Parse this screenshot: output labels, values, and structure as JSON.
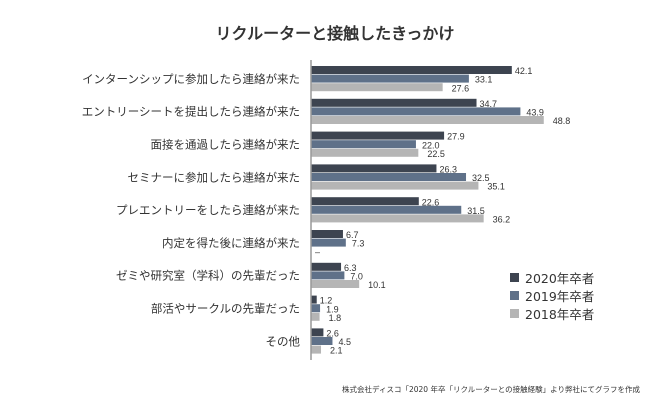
{
  "chart_data": {
    "type": "bar",
    "orientation": "horizontal",
    "title": "リクルーターと接触したきっかけ",
    "categories": [
      "インターンシップに参加したら連絡が来た",
      "エントリーシートを提出したら連絡が来た",
      "面接を通過したら連絡が来た",
      "セミナーに参加したら連絡が来た",
      "プレエントリーをしたら連絡が来た",
      "内定を得た後に連絡が来た",
      "ゼミや研究室（学科）の先輩だった",
      "部活やサークルの先輩だった",
      "その他"
    ],
    "series": [
      {
        "name": "2020年卒者",
        "color": "#3d4450",
        "values": [
          42.1,
          34.7,
          27.9,
          26.3,
          22.6,
          6.7,
          6.3,
          1.2,
          2.6
        ]
      },
      {
        "name": "2019年卒者",
        "color": "#5f7189",
        "values": [
          33.1,
          43.9,
          22.0,
          32.5,
          31.5,
          7.3,
          7.0,
          1.9,
          4.5
        ]
      },
      {
        "name": "2018年卒者",
        "color": "#b5b5b5",
        "values": [
          27.6,
          48.8,
          22.5,
          35.1,
          36.2,
          null,
          10.1,
          1.8,
          2.1
        ]
      }
    ],
    "missing_label": "–",
    "xlim": [
      0,
      50
    ],
    "grid": false,
    "legend_position": "bottom-right",
    "source": "株式会社ディスコ「2020 年卒「リクルーターとの接触経験」より弊社にてグラフを作成"
  }
}
